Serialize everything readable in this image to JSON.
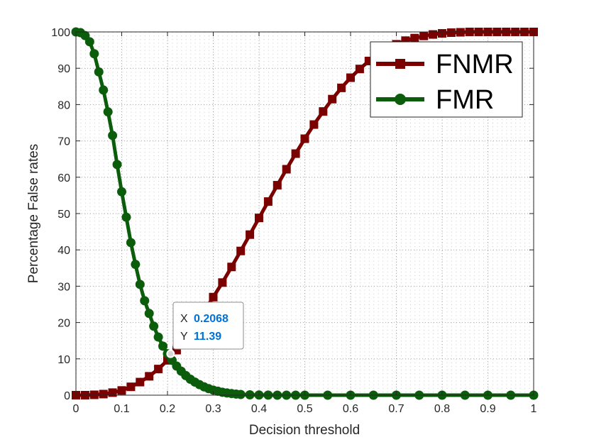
{
  "chart_data": {
    "type": "line",
    "title": "",
    "xlabel": "Decision threshold",
    "ylabel": "Percentage False rates",
    "xlim": [
      0,
      1
    ],
    "ylim": [
      0,
      100
    ],
    "x_ticks": [
      "0",
      "0.1",
      "0.2",
      "0.3",
      "0.4",
      "0.5",
      "0.6",
      "0.7",
      "0.8",
      "0.9",
      "1"
    ],
    "y_ticks": [
      "0",
      "10",
      "20",
      "30",
      "40",
      "50",
      "60",
      "70",
      "80",
      "90",
      "100"
    ],
    "grid": "minor dotted",
    "legend_position": "top-right",
    "series": [
      {
        "name": "FNMR",
        "color": "#7b0000",
        "marker": "square",
        "x": [
          0,
          0.02,
          0.04,
          0.06,
          0.08,
          0.1,
          0.12,
          0.14,
          0.16,
          0.18,
          0.2,
          0.22,
          0.24,
          0.26,
          0.28,
          0.3,
          0.32,
          0.34,
          0.36,
          0.38,
          0.4,
          0.42,
          0.44,
          0.46,
          0.48,
          0.5,
          0.52,
          0.54,
          0.56,
          0.58,
          0.6,
          0.62,
          0.64,
          0.66,
          0.68,
          0.7,
          0.72,
          0.74,
          0.76,
          0.78,
          0.8,
          0.82,
          0.84,
          0.86,
          0.88,
          0.9,
          0.92,
          0.94,
          0.96,
          0.98,
          1
        ],
        "y": [
          0,
          0,
          0.1,
          0.3,
          0.7,
          1.3,
          2.3,
          3.6,
          5.2,
          7.2,
          9.6,
          12.4,
          15.6,
          19.2,
          23,
          27,
          31,
          35.3,
          39.7,
          44.2,
          48.8,
          53.3,
          57.8,
          62.2,
          66.5,
          70.6,
          74.5,
          78.1,
          81.5,
          84.6,
          87.4,
          89.8,
          92,
          93.8,
          95.3,
          96.6,
          97.6,
          98.3,
          98.9,
          99.3,
          99.6,
          99.8,
          99.9,
          100,
          100,
          100,
          100,
          100,
          100,
          100,
          100
        ]
      },
      {
        "name": "FMR",
        "color": "#0b5d0b",
        "marker": "circle",
        "x": [
          0,
          0.01,
          0.02,
          0.03,
          0.04,
          0.05,
          0.06,
          0.07,
          0.08,
          0.09,
          0.1,
          0.11,
          0.12,
          0.13,
          0.14,
          0.15,
          0.16,
          0.17,
          0.18,
          0.19,
          0.2,
          0.21,
          0.22,
          0.23,
          0.24,
          0.25,
          0.26,
          0.27,
          0.28,
          0.29,
          0.3,
          0.31,
          0.32,
          0.33,
          0.34,
          0.35,
          0.36,
          0.38,
          0.4,
          0.42,
          0.44,
          0.46,
          0.48,
          0.5,
          0.55,
          0.6,
          0.65,
          0.7,
          0.75,
          0.8,
          0.85,
          0.9,
          0.95,
          1
        ],
        "y": [
          100,
          99.8,
          99,
          97.3,
          94,
          89,
          84,
          78,
          71.5,
          63.5,
          56,
          49,
          42,
          36,
          30.5,
          26,
          22.5,
          19,
          16,
          13.5,
          11.39,
          9.6,
          8,
          6.6,
          5.4,
          4.4,
          3.6,
          2.9,
          2.3,
          1.8,
          1.4,
          1.1,
          0.8,
          0.6,
          0.45,
          0.3,
          0.2,
          0.1,
          0.05,
          0.02,
          0,
          0,
          0,
          0,
          0,
          0,
          0,
          0,
          0,
          0,
          0,
          0,
          0,
          0
        ]
      }
    ],
    "datatip": {
      "x_key": "X",
      "x_value": "0.2068",
      "y_key": "Y",
      "y_value": "11.39",
      "x": 0.2068,
      "y": 11.39
    }
  }
}
